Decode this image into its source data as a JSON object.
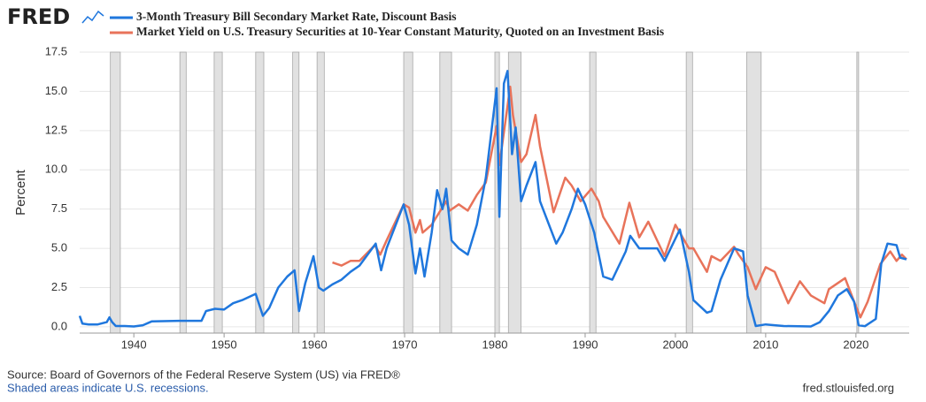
{
  "chart_data": {
    "type": "line",
    "logo": "FRED",
    "ylabel": "Percent",
    "source": "Source: Board of Governors of the Federal Reserve System (US) via FRED®",
    "note": "Shaded areas indicate U.S. recessions.",
    "credit": "fred.stlouisfed.org",
    "xlim": [
      1934,
      2025.9
    ],
    "xticks": [
      1940,
      1950,
      1960,
      1970,
      1980,
      1990,
      2000,
      2010,
      2020
    ],
    "ylim": [
      -0.4,
      17.5
    ],
    "yticks": [
      {
        "value": 0,
        "label": "0.0"
      },
      2.5,
      {
        "value": 5,
        "label": "5.0"
      },
      7.5,
      {
        "value": 10,
        "label": "10.0"
      },
      12.5,
      {
        "value": 15,
        "label": "15.0"
      },
      17.5
    ],
    "grid": true,
    "recession_color": "#e1e1e1",
    "recessions": [
      [
        1937.4,
        1938.5
      ],
      [
        1945.1,
        1945.8
      ],
      [
        1948.9,
        1949.8
      ],
      [
        1953.5,
        1954.4
      ],
      [
        1957.6,
        1958.3
      ],
      [
        1960.3,
        1961.1
      ],
      [
        1969.9,
        1970.9
      ],
      [
        1973.9,
        1975.2
      ],
      [
        1980.0,
        1980.5
      ],
      [
        1981.5,
        1982.9
      ],
      [
        1990.5,
        1991.2
      ],
      [
        2001.2,
        2001.9
      ],
      [
        2007.9,
        2009.5
      ],
      [
        2020.1,
        2020.3
      ]
    ],
    "series": [
      {
        "name": "3-Month Treasury Bill Secondary Market Rate, Discount Basis",
        "color": "#1f77dd",
        "x": [
          1934.0,
          1934.3,
          1935,
          1936,
          1937.0,
          1937.3,
          1937.6,
          1938,
          1939,
          1940,
          1941,
          1942,
          1945,
          1947.5,
          1948,
          1949,
          1950,
          1951,
          1952,
          1953.5,
          1954.3,
          1955,
          1956,
          1957,
          1957.8,
          1958.3,
          1959,
          1959.9,
          1960.5,
          1961,
          1962,
          1963,
          1964,
          1965,
          1966.8,
          1967.4,
          1968,
          1969.9,
          1970.5,
          1971.2,
          1971.7,
          1972.2,
          1973,
          1973.6,
          1974.2,
          1974.6,
          1975.2,
          1976,
          1977,
          1978,
          1979,
          1980.2,
          1980.5,
          1981.0,
          1981.4,
          1981.9,
          1982.3,
          1982.9,
          1983.5,
          1984.5,
          1985,
          1986.8,
          1987.5,
          1988.5,
          1989.2,
          1990,
          1991,
          1992,
          1993,
          1994.5,
          1995,
          1996,
          1998,
          1998.8,
          2000.5,
          2001.5,
          2002,
          2003.5,
          2004,
          2005,
          2006.5,
          2007.5,
          2008,
          2008.9,
          2010,
          2012,
          2015,
          2016,
          2017,
          2018,
          2019,
          2019.8,
          2020.3,
          2021,
          2022.2,
          2022.8,
          2023.5,
          2024.5,
          2024.9,
          2025.6
        ],
        "values": [
          0.7,
          0.2,
          0.15,
          0.15,
          0.3,
          0.6,
          0.3,
          0.05,
          0.05,
          0.02,
          0.1,
          0.35,
          0.38,
          0.38,
          1.0,
          1.15,
          1.1,
          1.5,
          1.7,
          2.1,
          0.7,
          1.2,
          2.5,
          3.2,
          3.6,
          1.0,
          2.8,
          4.5,
          2.5,
          2.3,
          2.7,
          3.0,
          3.5,
          3.9,
          5.3,
          3.6,
          5.0,
          7.8,
          6.5,
          3.4,
          5.0,
          3.2,
          6.0,
          8.7,
          7.5,
          8.8,
          5.5,
          5.0,
          4.6,
          6.5,
          9.5,
          15.2,
          7.0,
          15.5,
          16.3,
          11,
          12.7,
          8.0,
          9.0,
          10.5,
          8.0,
          5.3,
          6.0,
          7.5,
          8.8,
          7.8,
          6.0,
          3.2,
          3.0,
          4.8,
          5.8,
          5.0,
          5.0,
          4.2,
          6.2,
          3.5,
          1.7,
          0.9,
          1.0,
          3.0,
          5.0,
          4.8,
          2.0,
          0.05,
          0.15,
          0.05,
          0.02,
          0.3,
          1.0,
          2.0,
          2.4,
          1.6,
          0.1,
          0.04,
          0.5,
          4.0,
          5.3,
          5.2,
          4.4,
          4.3
        ]
      },
      {
        "name": "Market Yield on U.S. Treasury Securities at 10-Year Constant Maturity, Quoted on an Investment Basis",
        "color": "#e8735a",
        "x": [
          1962,
          1963,
          1964,
          1965,
          1966.7,
          1967.3,
          1968,
          1969.9,
          1970.5,
          1971.2,
          1971.7,
          1972,
          1973,
          1974.6,
          1975,
          1976,
          1977,
          1978,
          1979,
          1980.2,
          1980.5,
          1981.7,
          1982,
          1982.9,
          1983.5,
          1984.5,
          1985,
          1986.5,
          1987.8,
          1988.5,
          1989.5,
          1990.7,
          1991.5,
          1992,
          1993.8,
          1994.9,
          1996,
          1997,
          1998.8,
          2000,
          2001.5,
          2002,
          2003.5,
          2004,
          2005,
          2006.5,
          2007,
          2008,
          2008.9,
          2010,
          2011,
          2012.5,
          2013.8,
          2015,
          2016.5,
          2017,
          2018.8,
          2019.8,
          2020.5,
          2021.3,
          2022.7,
          2023.8,
          2024.5,
          2025.1,
          2025.6
        ],
        "values": [
          4.1,
          3.9,
          4.2,
          4.2,
          5.2,
          4.6,
          5.5,
          7.8,
          7.6,
          6.0,
          6.8,
          6.0,
          6.5,
          8.0,
          7.4,
          7.8,
          7.4,
          8.4,
          9.2,
          12.8,
          10.3,
          15.3,
          13.5,
          10.5,
          11.0,
          13.5,
          11.5,
          7.3,
          9.5,
          9.0,
          8.0,
          8.8,
          8.0,
          7.0,
          5.3,
          7.9,
          5.7,
          6.7,
          4.5,
          6.5,
          5.0,
          5.0,
          3.5,
          4.5,
          4.2,
          5.1,
          4.6,
          3.8,
          2.4,
          3.8,
          3.5,
          1.5,
          2.9,
          2.0,
          1.5,
          2.4,
          3.1,
          1.6,
          0.6,
          1.6,
          4.0,
          4.8,
          4.2,
          4.6,
          4.3
        ]
      }
    ]
  }
}
